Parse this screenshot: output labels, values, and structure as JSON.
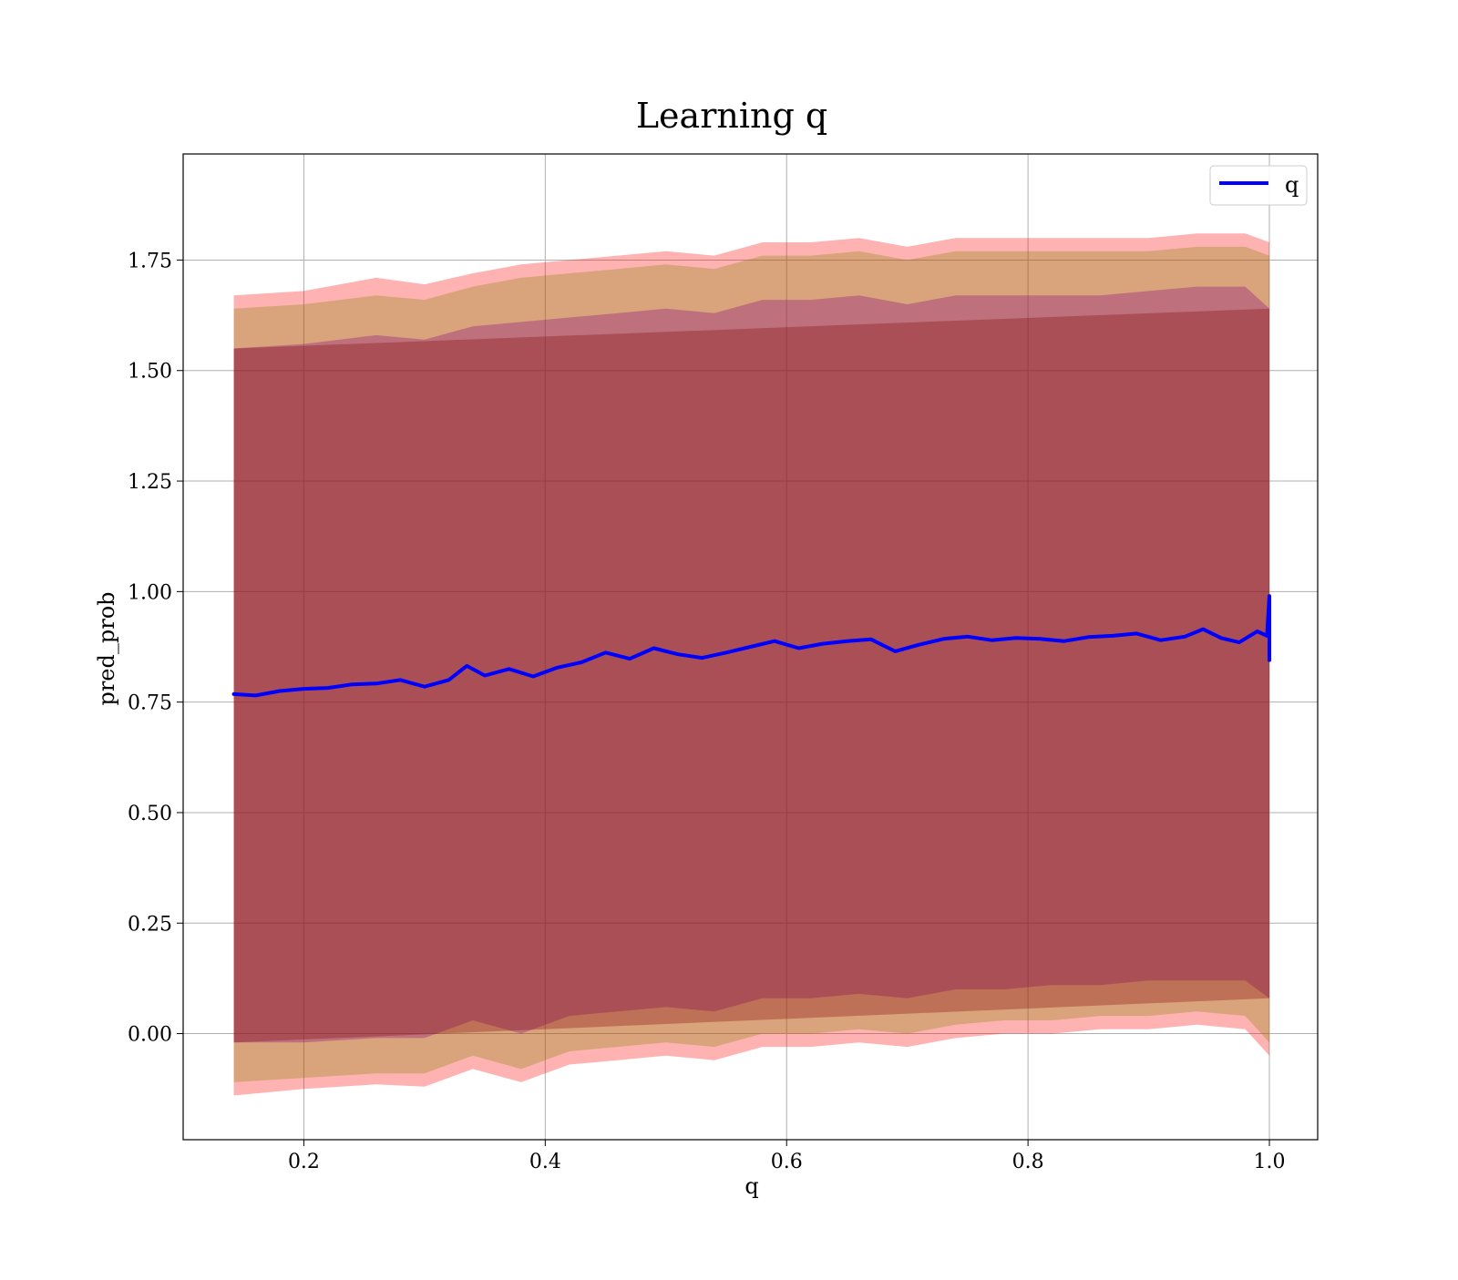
{
  "chart_data": {
    "type": "area",
    "title": "Learning q",
    "xlabel": "q",
    "ylabel": "pred_prob",
    "xlim": [
      0.1,
      1.04
    ],
    "ylim": [
      -0.24,
      1.99
    ],
    "xticks": [
      0.2,
      0.4,
      0.6,
      0.8,
      1.0
    ],
    "xtick_labels": [
      "0.2",
      "0.4",
      "0.6",
      "0.8",
      "1.0"
    ],
    "yticks": [
      0.0,
      0.25,
      0.5,
      0.75,
      1.0,
      1.25,
      1.5,
      1.75
    ],
    "ytick_labels": [
      "0.00",
      "0.25",
      "0.50",
      "0.75",
      "1.00",
      "1.25",
      "1.50",
      "1.75"
    ],
    "grid": true,
    "legend": {
      "position": "top-right",
      "entries": [
        "q"
      ]
    },
    "series": [
      {
        "name": "q",
        "color": "#0000ff",
        "x": [
          0.142,
          0.16,
          0.18,
          0.2,
          0.22,
          0.24,
          0.26,
          0.28,
          0.3,
          0.32,
          0.335,
          0.35,
          0.37,
          0.39,
          0.41,
          0.43,
          0.45,
          0.47,
          0.49,
          0.51,
          0.53,
          0.55,
          0.57,
          0.59,
          0.61,
          0.63,
          0.65,
          0.67,
          0.69,
          0.71,
          0.73,
          0.75,
          0.77,
          0.79,
          0.81,
          0.83,
          0.85,
          0.87,
          0.89,
          0.91,
          0.93,
          0.945,
          0.96,
          0.975,
          0.99,
          0.998,
          1.0,
          1.0
        ],
        "y": [
          0.768,
          0.765,
          0.775,
          0.78,
          0.782,
          0.79,
          0.792,
          0.8,
          0.785,
          0.8,
          0.832,
          0.81,
          0.825,
          0.808,
          0.828,
          0.84,
          0.862,
          0.848,
          0.872,
          0.858,
          0.85,
          0.862,
          0.875,
          0.888,
          0.872,
          0.882,
          0.888,
          0.892,
          0.865,
          0.88,
          0.893,
          0.898,
          0.89,
          0.895,
          0.893,
          0.888,
          0.897,
          0.9,
          0.905,
          0.89,
          0.898,
          0.915,
          0.895,
          0.885,
          0.91,
          0.9,
          0.99,
          0.845
        ]
      }
    ],
    "bands": [
      {
        "color": "#ff0000",
        "opacity": 0.3,
        "x": [
          0.142,
          0.2,
          0.26,
          0.3,
          0.34,
          0.38,
          0.42,
          0.46,
          0.5,
          0.54,
          0.58,
          0.62,
          0.66,
          0.7,
          0.74,
          0.78,
          0.82,
          0.86,
          0.9,
          0.94,
          0.98,
          1.0
        ],
        "upper": [
          1.67,
          1.68,
          1.71,
          1.695,
          1.72,
          1.74,
          1.75,
          1.76,
          1.77,
          1.76,
          1.79,
          1.79,
          1.8,
          1.78,
          1.8,
          1.8,
          1.8,
          1.8,
          1.8,
          1.81,
          1.81,
          1.79
        ],
        "lower": [
          -0.14,
          -0.125,
          -0.115,
          -0.12,
          -0.08,
          -0.11,
          -0.07,
          -0.06,
          -0.05,
          -0.06,
          -0.03,
          -0.03,
          -0.02,
          -0.03,
          -0.01,
          0.0,
          0.0,
          0.01,
          0.01,
          0.02,
          0.01,
          -0.05
        ]
      },
      {
        "color": "#808000",
        "opacity": 0.3,
        "x": [
          0.142,
          0.2,
          0.26,
          0.3,
          0.34,
          0.38,
          0.42,
          0.46,
          0.5,
          0.54,
          0.58,
          0.62,
          0.66,
          0.7,
          0.74,
          0.78,
          0.82,
          0.86,
          0.9,
          0.94,
          0.98,
          1.0
        ],
        "upper": [
          1.64,
          1.65,
          1.67,
          1.66,
          1.69,
          1.71,
          1.72,
          1.73,
          1.74,
          1.73,
          1.76,
          1.76,
          1.77,
          1.75,
          1.77,
          1.77,
          1.77,
          1.77,
          1.77,
          1.78,
          1.78,
          1.76
        ],
        "lower": [
          -0.11,
          -0.1,
          -0.09,
          -0.09,
          -0.05,
          -0.08,
          -0.04,
          -0.03,
          -0.02,
          -0.03,
          0.0,
          0.0,
          0.01,
          0.0,
          0.02,
          0.03,
          0.03,
          0.04,
          0.04,
          0.05,
          0.04,
          -0.02
        ]
      },
      {
        "color": "#800080",
        "opacity": 0.3,
        "x": [
          0.142,
          0.2,
          0.26,
          0.3,
          0.34,
          0.38,
          0.42,
          0.46,
          0.5,
          0.54,
          0.58,
          0.62,
          0.66,
          0.7,
          0.74,
          0.78,
          0.82,
          0.86,
          0.9,
          0.94,
          0.98,
          1.0
        ],
        "upper": [
          1.55,
          1.56,
          1.58,
          1.57,
          1.6,
          1.61,
          1.62,
          1.63,
          1.64,
          1.63,
          1.66,
          1.66,
          1.67,
          1.65,
          1.67,
          1.67,
          1.67,
          1.67,
          1.68,
          1.69,
          1.69,
          1.64
        ],
        "lower": [
          -0.02,
          -0.02,
          -0.01,
          -0.01,
          0.03,
          0.0,
          0.04,
          0.05,
          0.06,
          0.05,
          0.08,
          0.08,
          0.09,
          0.08,
          0.1,
          0.1,
          0.11,
          0.11,
          0.12,
          0.12,
          0.12,
          0.08
        ]
      },
      {
        "color": "#800000",
        "opacity": 0.3,
        "x": [
          0.142,
          1.0
        ],
        "upper": [
          1.55,
          1.64
        ],
        "lower": [
          -0.02,
          0.08
        ]
      }
    ]
  }
}
